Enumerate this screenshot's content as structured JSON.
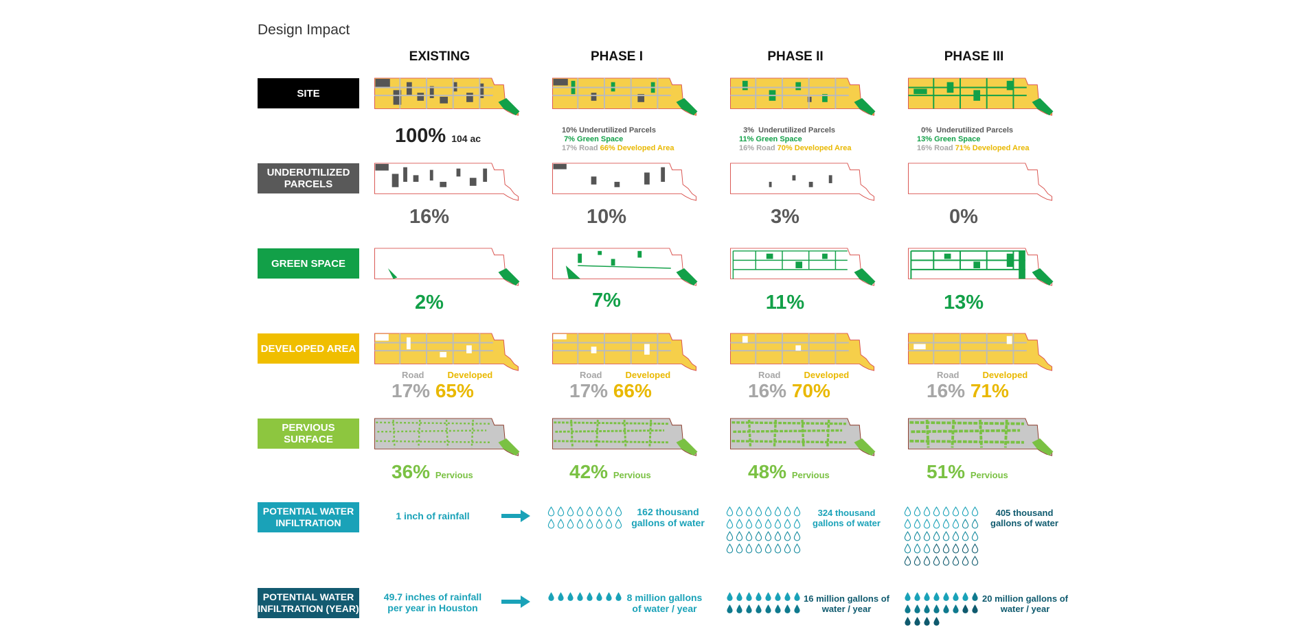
{
  "title": "Design Impact",
  "columns": [
    "EXISTING",
    "PHASE I",
    "PHASE II",
    "PHASE III"
  ],
  "row_labels": {
    "site": "SITE",
    "underutilized": "UNDERUTILIZED PARCELS",
    "green": "GREEN SPACE",
    "developed": "DEVELOPED AREA",
    "pervious": "PERVIOUS SURFACE",
    "water": "POTENTIAL WATER INFILTRATION",
    "water_year": "POTENTIAL WATER INFILTRATION (YEAR)"
  },
  "colors": {
    "site": "#000000",
    "underutilized": "#595959",
    "green": "#12a048",
    "developed": "#f0be00",
    "pervious": "#8dc63f",
    "water": "#1aa2b8",
    "water_year": "#135a70"
  },
  "site": {
    "existing_pct": "100%",
    "existing_area": "104 ac",
    "phases": [
      {
        "underutilized": "10%",
        "underutilized_label": "Underutilized Parcels",
        "green": "7%",
        "green_label": "Green Space",
        "road": "17%",
        "road_label": "Road",
        "developed": "66%",
        "developed_label": "Developed Area"
      },
      {
        "underutilized": "3%",
        "underutilized_label": "Underutilized Parcels",
        "green": "11%",
        "green_label": "Green Space",
        "road": "16%",
        "road_label": "Road",
        "developed": "70%",
        "developed_label": "Developed Area"
      },
      {
        "underutilized": "0%",
        "underutilized_label": "Underutilized Parcels",
        "green": "13%",
        "green_label": "Green Space",
        "road": "16%",
        "road_label": "Road",
        "developed": "71%",
        "developed_label": "Developed Area"
      }
    ]
  },
  "underutilized_pct": [
    "16%",
    "10%",
    "3%",
    "0%"
  ],
  "green_pct": [
    "2%",
    "7%",
    "11%",
    "13%"
  ],
  "developed": {
    "road_label": "Road",
    "developed_label": "Developed",
    "road_pct": [
      "17%",
      "17%",
      "16%",
      "16%"
    ],
    "developed_pct": [
      "65%",
      "66%",
      "70%",
      "71%"
    ]
  },
  "pervious": {
    "label": "Pervious",
    "pct": [
      "36%",
      "42%",
      "48%",
      "51%"
    ]
  },
  "water": {
    "intro": "1 inch of rainfall",
    "amounts": [
      "162 thousand gallons of water",
      "324 thousand gallons of water",
      "405 thousand gallons of water"
    ],
    "drop_counts": [
      16,
      32,
      40
    ]
  },
  "water_year": {
    "intro": "49.7 inches of rainfall per year in Houston",
    "amounts": [
      "8 million gallons of water / year",
      "16 million gallons of water / year",
      "20 million gallons of water / year"
    ],
    "drop_counts": [
      8,
      16,
      20
    ]
  }
}
